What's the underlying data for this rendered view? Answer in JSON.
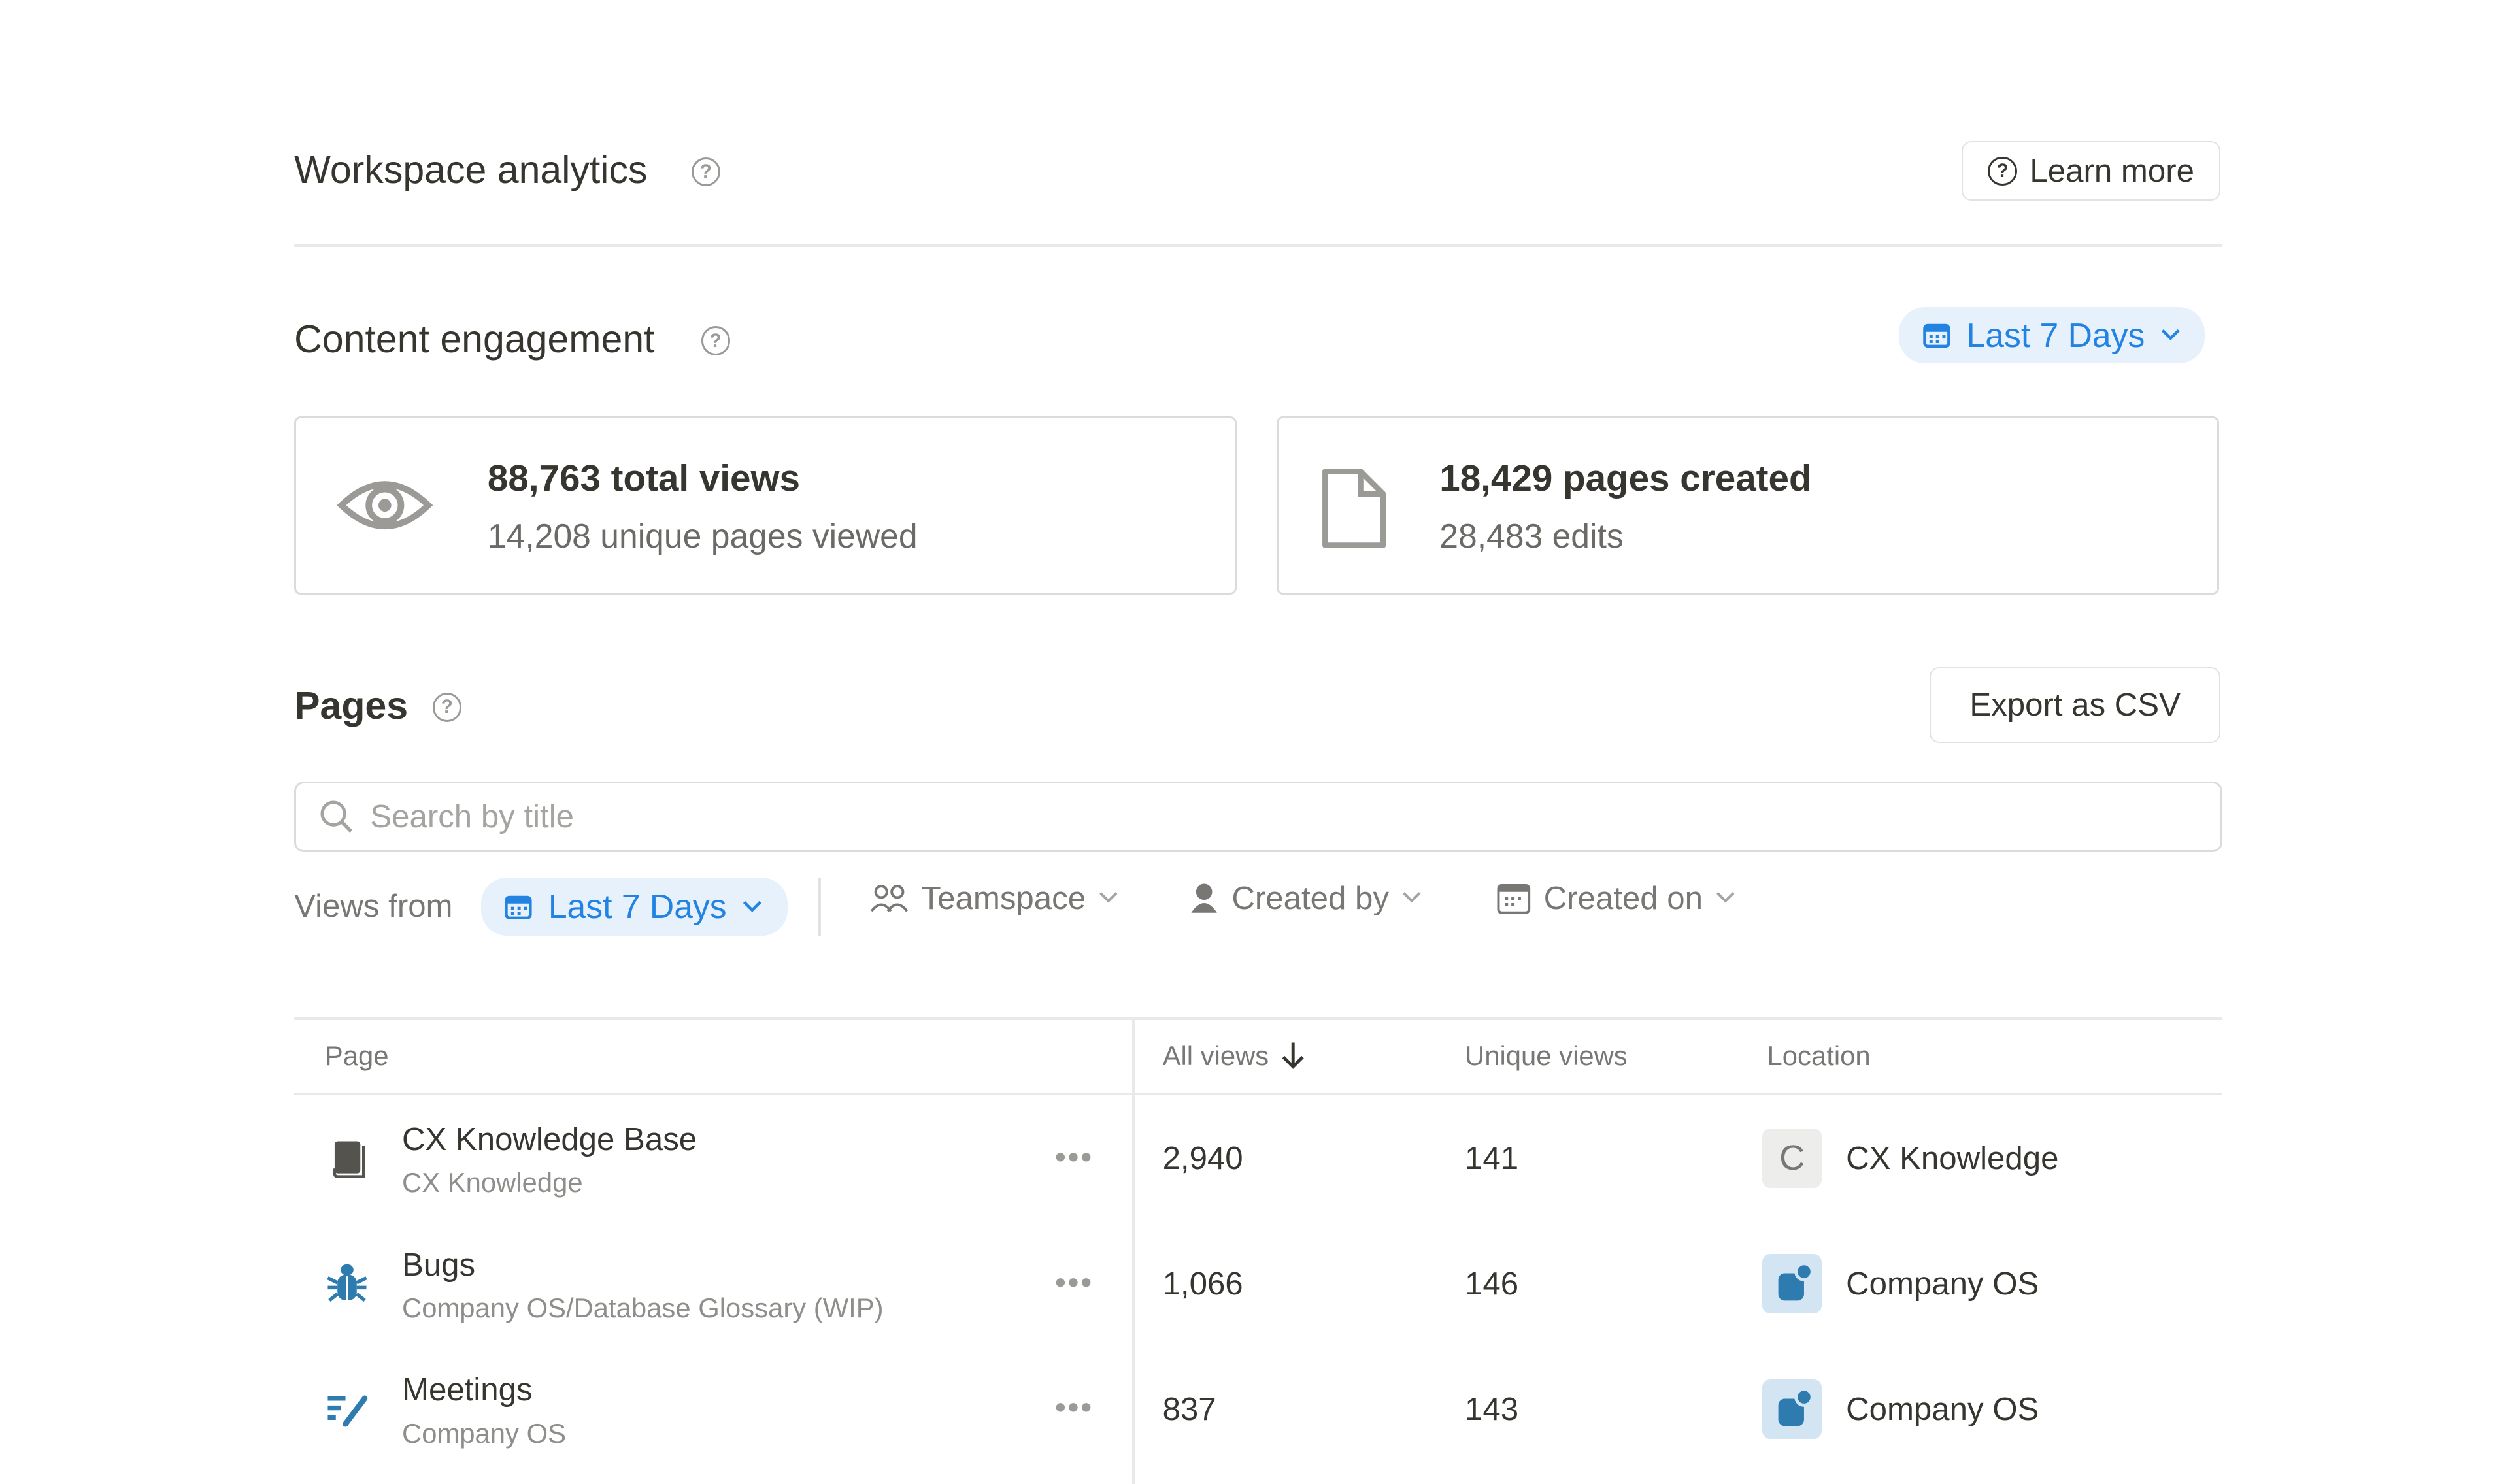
{
  "header": {
    "title": "Workspace analytics",
    "learn_more": "Learn more"
  },
  "engagement": {
    "title": "Content engagement",
    "range": "Last 7 Days",
    "views_card": {
      "primary": "88,763 total views",
      "secondary": "14,208 unique pages viewed"
    },
    "pages_card": {
      "primary": "18,429 pages created",
      "secondary": "28,483 edits"
    }
  },
  "pages": {
    "title": "Pages",
    "export": "Export as CSV",
    "search_placeholder": "Search by title",
    "filters": {
      "views_from": "Views from",
      "range": "Last 7 Days",
      "teamspace": "Teamspace",
      "created_by": "Created by",
      "created_on": "Created on"
    },
    "columns": [
      "Page",
      "All views",
      "Unique views",
      "Location"
    ],
    "rows": [
      {
        "title": "CX Knowledge Base",
        "path": "CX Knowledge",
        "icon": "book-icon",
        "all_views": "2,940",
        "unique_views": "141",
        "location": "CX Knowledge",
        "location_icon": "C"
      },
      {
        "title": "Bugs",
        "path": "Company OS/Database Glossary (WIP)",
        "icon": "bug-icon",
        "all_views": "1,066",
        "unique_views": "146",
        "location": "Company OS",
        "location_icon": ""
      },
      {
        "title": "Meetings",
        "path": "Company OS",
        "icon": "meeting-notes-icon",
        "all_views": "837",
        "unique_views": "143",
        "location": "Company OS",
        "location_icon": ""
      }
    ]
  },
  "colors": {
    "accent": "#2383e2",
    "accent_bg": "#e7f1fb",
    "teamspace_icon": "#2e7bb0"
  }
}
